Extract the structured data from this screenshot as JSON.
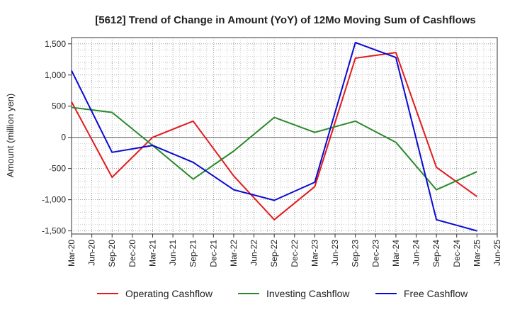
{
  "chart_data": {
    "type": "line",
    "title": "[5612]  Trend of Change in Amount (YoY) of 12Mo Moving Sum of Cashflows",
    "xlabel": "",
    "ylabel": "Amount (million yen)",
    "ylim": [
      -1550,
      1600
    ],
    "yticks": [
      -1500,
      -1000,
      -500,
      0,
      500,
      1000,
      1500
    ],
    "ytick_labels": [
      "-1,500",
      "-1,000",
      "-500",
      "0",
      "500",
      "1,000",
      "1,500"
    ],
    "categories": [
      "Mar-20",
      "Jun-20",
      "Sep-20",
      "Dec-20",
      "Mar-21",
      "Jun-21",
      "Sep-21",
      "Dec-21",
      "Mar-22",
      "Jun-22",
      "Sep-22",
      "Dec-22",
      "Mar-23",
      "Jun-23",
      "Sep-23",
      "Dec-23",
      "Mar-24",
      "Jun-24",
      "Sep-24",
      "Dec-24",
      "Mar-25",
      "Jun-25"
    ],
    "grid": true,
    "legend_position": "bottom",
    "series": [
      {
        "name": "Operating Cashflow",
        "color": "#e31a1c",
        "points": [
          {
            "x": "Mar-20",
            "y": 570
          },
          {
            "x": "Sep-20",
            "y": -640
          },
          {
            "x": "Mar-21",
            "y": 0
          },
          {
            "x": "Sep-21",
            "y": 260
          },
          {
            "x": "Mar-22",
            "y": -620
          },
          {
            "x": "Sep-22",
            "y": -1320
          },
          {
            "x": "Mar-23",
            "y": -790
          },
          {
            "x": "Sep-23",
            "y": 1270
          },
          {
            "x": "Mar-24",
            "y": 1360
          },
          {
            "x": "Sep-24",
            "y": -480
          },
          {
            "x": "Mar-25",
            "y": -950
          }
        ]
      },
      {
        "name": "Investing Cashflow",
        "color": "#2a8a2a",
        "points": [
          {
            "x": "Mar-20",
            "y": 480
          },
          {
            "x": "Sep-20",
            "y": 400
          },
          {
            "x": "Mar-21",
            "y": -130
          },
          {
            "x": "Sep-21",
            "y": -670
          },
          {
            "x": "Mar-22",
            "y": -220
          },
          {
            "x": "Sep-22",
            "y": 320
          },
          {
            "x": "Mar-23",
            "y": 80
          },
          {
            "x": "Sep-23",
            "y": 260
          },
          {
            "x": "Mar-24",
            "y": -80
          },
          {
            "x": "Sep-24",
            "y": -840
          },
          {
            "x": "Mar-25",
            "y": -550
          }
        ]
      },
      {
        "name": "Free Cashflow",
        "color": "#0a0ad2",
        "points": [
          {
            "x": "Mar-20",
            "y": 1070
          },
          {
            "x": "Sep-20",
            "y": -240
          },
          {
            "x": "Mar-21",
            "y": -130
          },
          {
            "x": "Sep-21",
            "y": -400
          },
          {
            "x": "Mar-22",
            "y": -840
          },
          {
            "x": "Sep-22",
            "y": -1010
          },
          {
            "x": "Mar-23",
            "y": -720
          },
          {
            "x": "Sep-23",
            "y": 1520
          },
          {
            "x": "Mar-24",
            "y": 1280
          },
          {
            "x": "Sep-24",
            "y": -1320
          },
          {
            "x": "Mar-25",
            "y": -1500
          }
        ]
      }
    ]
  }
}
